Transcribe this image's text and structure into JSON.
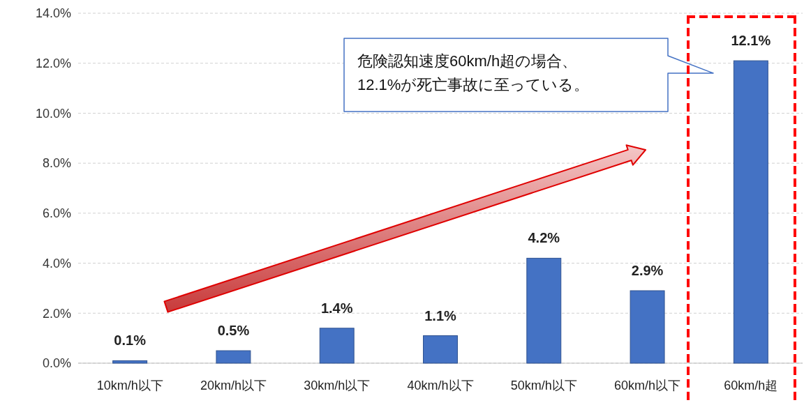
{
  "chart_data": {
    "type": "bar",
    "categories": [
      "10km/h以下",
      "20km/h以下",
      "30km/h以下",
      "40km/h以下",
      "50km/h以下",
      "60km/h以下",
      "60km/h超"
    ],
    "values": [
      0.1,
      0.5,
      1.4,
      1.1,
      4.2,
      2.9,
      12.1
    ],
    "value_labels": [
      "0.1%",
      "0.5%",
      "1.4%",
      "1.1%",
      "4.2%",
      "2.9%",
      "12.1%"
    ],
    "color": "#4472c4",
    "ylim": [
      0,
      14
    ],
    "yticks": [
      {
        "value": 0,
        "label": "0.0%"
      },
      {
        "value": 2,
        "label": "2.0%"
      },
      {
        "value": 4,
        "label": "4.0%"
      },
      {
        "value": 6,
        "label": "6.0%"
      },
      {
        "value": 8,
        "label": "8.0%"
      },
      {
        "value": 10,
        "label": "10.0%"
      },
      {
        "value": 12,
        "label": "12.0%"
      },
      {
        "value": 14,
        "label": "14.0%"
      }
    ],
    "grid": "y",
    "annotations": [
      "危険認知速度60km/h超の場合、\n12.1%が死亡事故に至っている。"
    ]
  }
}
